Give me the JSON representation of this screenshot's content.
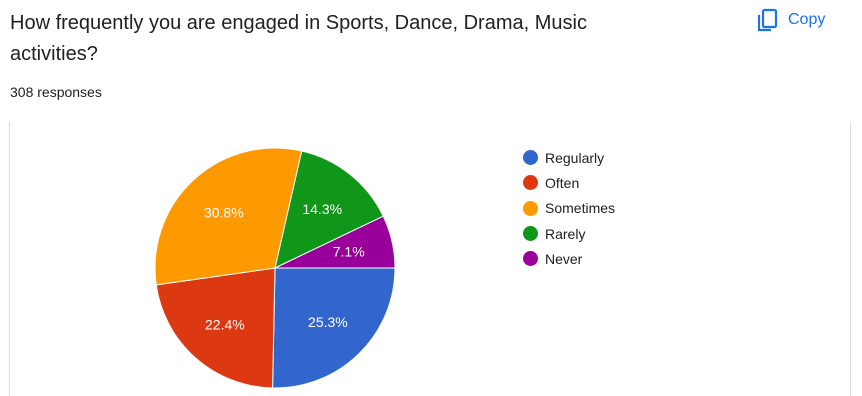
{
  "question": {
    "title": "How frequently you are engaged in Sports, Dance, Drama, Music activities?",
    "responses": "308 responses"
  },
  "toolbar": {
    "copy_label": "Copy",
    "copy_icon": "copy-icon"
  },
  "colors": {
    "accent": "#1a73e8"
  },
  "chart_data": {
    "type": "pie",
    "categories": [
      "Regularly",
      "Often",
      "Sometimes",
      "Rarely",
      "Never"
    ],
    "values": [
      25.3,
      22.4,
      30.8,
      14.3,
      7.1
    ],
    "labels": [
      "25.3%",
      "22.4%",
      "30.8%",
      "14.3%",
      "7.1%"
    ],
    "colors": [
      "#3366cc",
      "#dc3912",
      "#ff9900",
      "#109618",
      "#990099"
    ],
    "legend": "right"
  }
}
